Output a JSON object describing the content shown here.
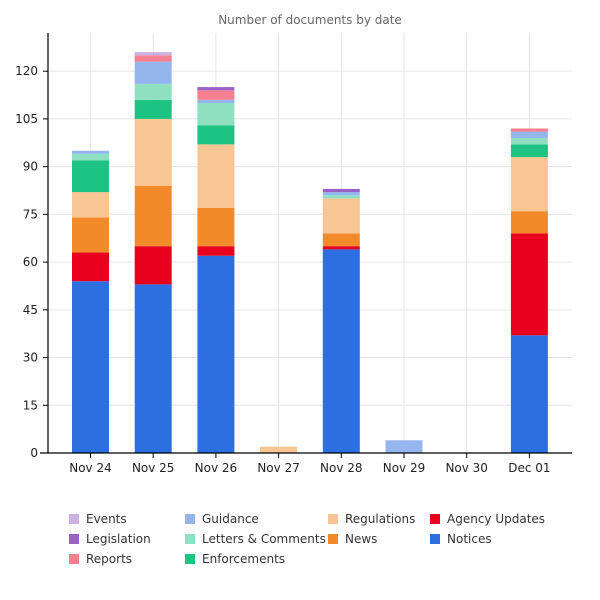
{
  "chart_data": {
    "type": "bar",
    "stacked": true,
    "title": "Number of documents by date",
    "xlabel": "",
    "ylabel": "",
    "ylim": [
      0,
      132
    ],
    "yticks": [
      0,
      15,
      30,
      45,
      60,
      75,
      90,
      105,
      120
    ],
    "grid": true,
    "legend_position": "bottom",
    "categories": [
      "Nov 24",
      "Nov 25",
      "Nov 26",
      "Nov 27",
      "Nov 28",
      "Nov 29",
      "Nov 30",
      "Dec 01"
    ],
    "series": [
      {
        "name": "Notices",
        "color": "#2d6fe0",
        "values": [
          54,
          53,
          62,
          0,
          64,
          0,
          0,
          37
        ]
      },
      {
        "name": "Agency Updates",
        "color": "#e8001e",
        "values": [
          9,
          12,
          3,
          0,
          1,
          0,
          0,
          32
        ]
      },
      {
        "name": "News",
        "color": "#f28a2a",
        "values": [
          11,
          19,
          12,
          0,
          4,
          0,
          0,
          7
        ]
      },
      {
        "name": "Regulations",
        "color": "#f8c594",
        "values": [
          8,
          21,
          20,
          2,
          11,
          0,
          0,
          17
        ]
      },
      {
        "name": "Enforcements",
        "color": "#1cc381",
        "values": [
          10,
          6,
          6,
          0,
          0,
          0,
          0,
          4
        ]
      },
      {
        "name": "Letters & Comments",
        "color": "#8ee0c0",
        "values": [
          2,
          5,
          7,
          0,
          1,
          0,
          0,
          2
        ]
      },
      {
        "name": "Guidance",
        "color": "#94b5ee",
        "values": [
          1,
          7,
          1,
          0,
          1,
          4,
          0,
          2
        ]
      },
      {
        "name": "Reports",
        "color": "#f4808f",
        "values": [
          0,
          2,
          3,
          0,
          0,
          0,
          0,
          1
        ]
      },
      {
        "name": "Legislation",
        "color": "#9a62c8",
        "values": [
          0,
          0,
          1,
          0,
          1,
          0,
          0,
          0
        ]
      },
      {
        "name": "Events",
        "color": "#cdb1e0",
        "values": [
          0,
          1,
          0,
          0,
          0,
          0,
          0,
          0
        ]
      }
    ],
    "legend_order": [
      "Events",
      "Legislation",
      "Reports",
      "Guidance",
      "Letters & Comments",
      "Enforcements",
      "Regulations",
      "News",
      "Agency Updates",
      "Notices"
    ]
  }
}
